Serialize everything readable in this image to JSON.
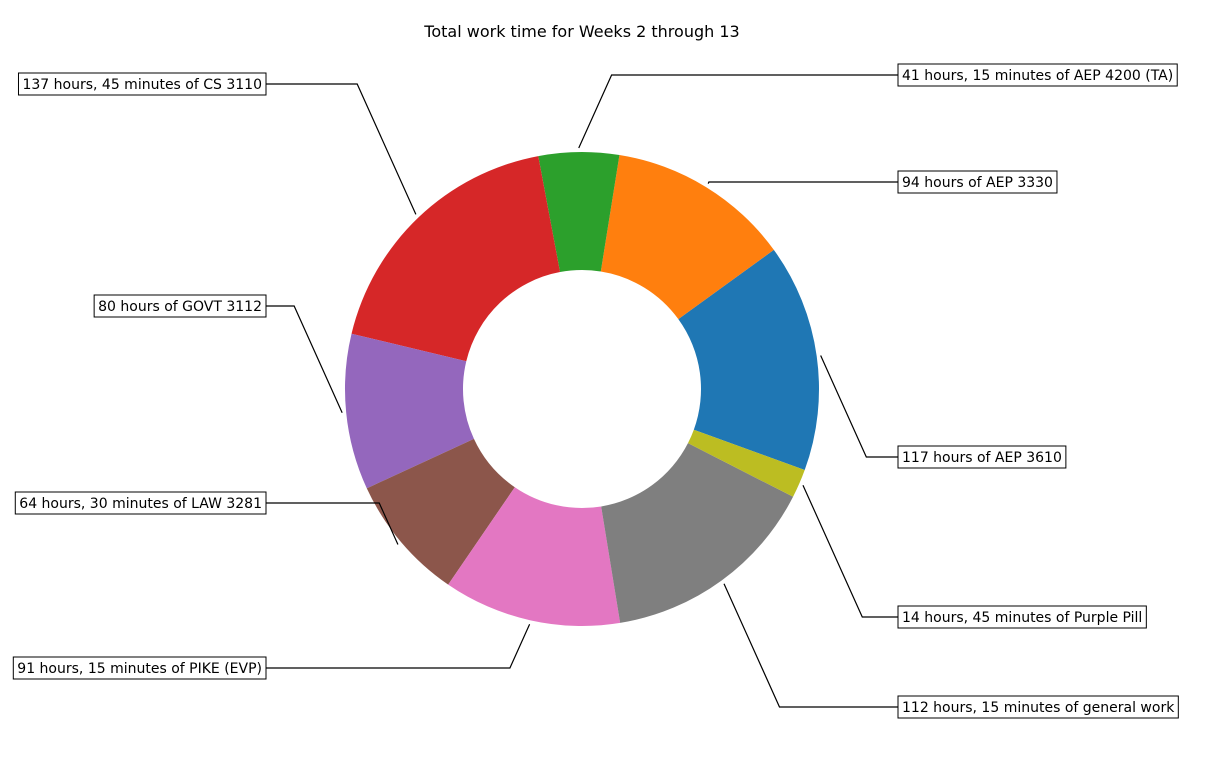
{
  "chart_data": {
    "type": "pie",
    "title": "Total work time for Weeks 2 through 13",
    "slices": [
      {
        "label": "117 hours of AEP 3610",
        "hours": 117,
        "color": "#1f77b4"
      },
      {
        "label": "94 hours of AEP 3330",
        "hours": 94,
        "color": "#ff7f0e"
      },
      {
        "label": "41 hours, 15 minutes of AEP 4200 (TA)",
        "hours": 41.25,
        "color": "#2ca02c"
      },
      {
        "label": "137 hours, 45 minutes of CS 3110",
        "hours": 137.75,
        "color": "#d62728"
      },
      {
        "label": "80 hours of GOVT 3112",
        "hours": 80,
        "color": "#9467bd"
      },
      {
        "label": "64 hours, 30 minutes of LAW 3281",
        "hours": 64.5,
        "color": "#8c564b"
      },
      {
        "label": "91 hours, 15 minutes of PIKE (EVP)",
        "hours": 91.25,
        "color": "#e377c2"
      },
      {
        "label": "112 hours, 15 minutes of general work",
        "hours": 112.25,
        "color": "#7f7f7f"
      },
      {
        "label": "14 hours, 45 minutes of Purple Pill",
        "hours": 14.75,
        "color": "#bcbd22"
      }
    ],
    "legend": "none"
  }
}
